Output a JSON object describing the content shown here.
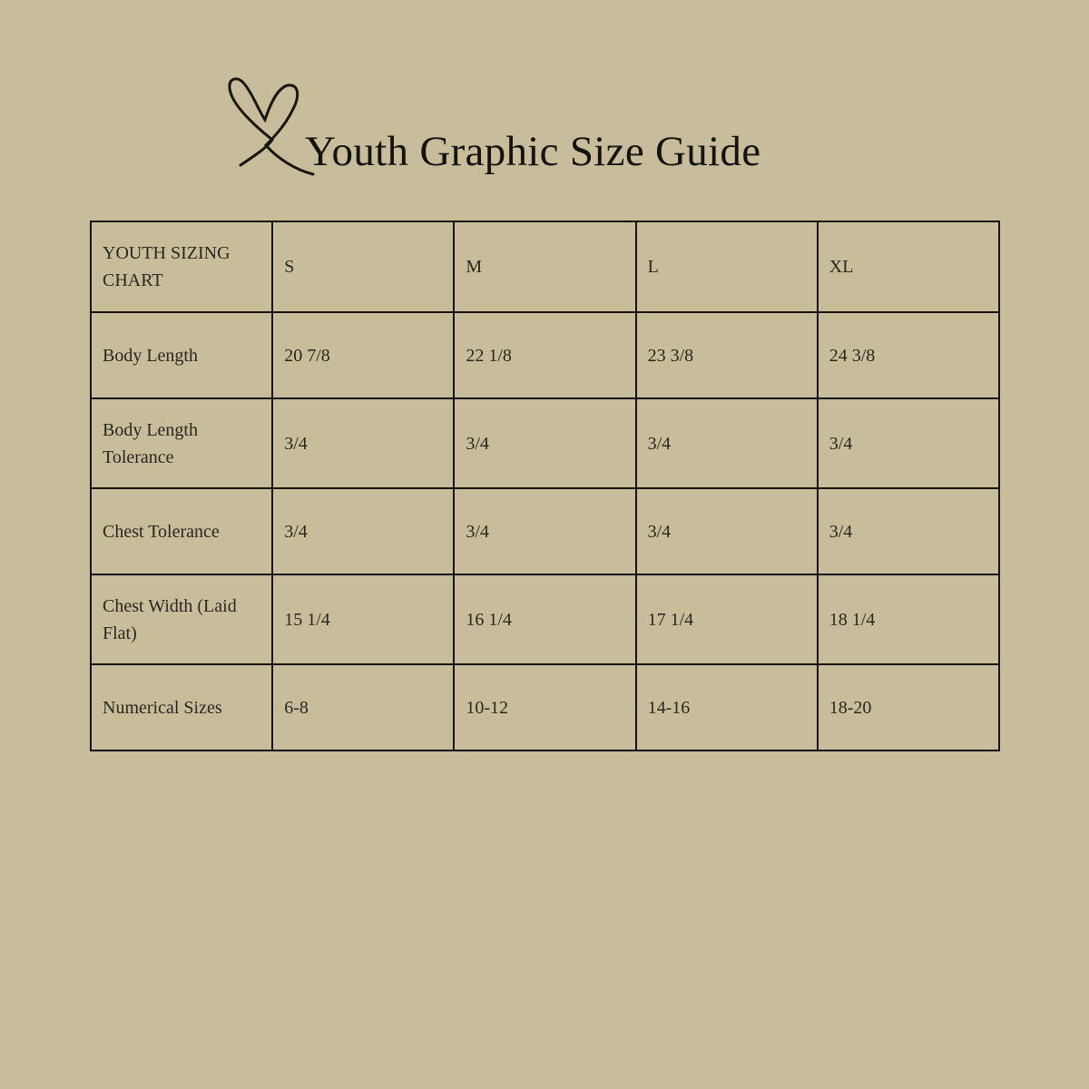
{
  "title": "Youth Graphic Size Guide",
  "logo_icon": "heart-outline-icon",
  "background_color": "#c7bd9b",
  "table": {
    "header": [
      "YOUTH SIZING CHART",
      "S",
      "M",
      "L",
      "XL"
    ],
    "rows": [
      [
        "Body Length",
        "20 7/8",
        "22 1/8",
        "23 3/8",
        "24 3/8"
      ],
      [
        "Body Length Tolerance",
        "3/4",
        "3/4",
        "3/4",
        "3/4"
      ],
      [
        "Chest Tolerance",
        "3/4",
        "3/4",
        "3/4",
        "3/4"
      ],
      [
        "Chest Width (Laid Flat)",
        "15 1/4",
        "16 1/4",
        "17 1/4",
        "18 1/4"
      ],
      [
        "Numerical Sizes",
        "6-8",
        "10-12",
        "14-16",
        "18-20"
      ]
    ]
  }
}
